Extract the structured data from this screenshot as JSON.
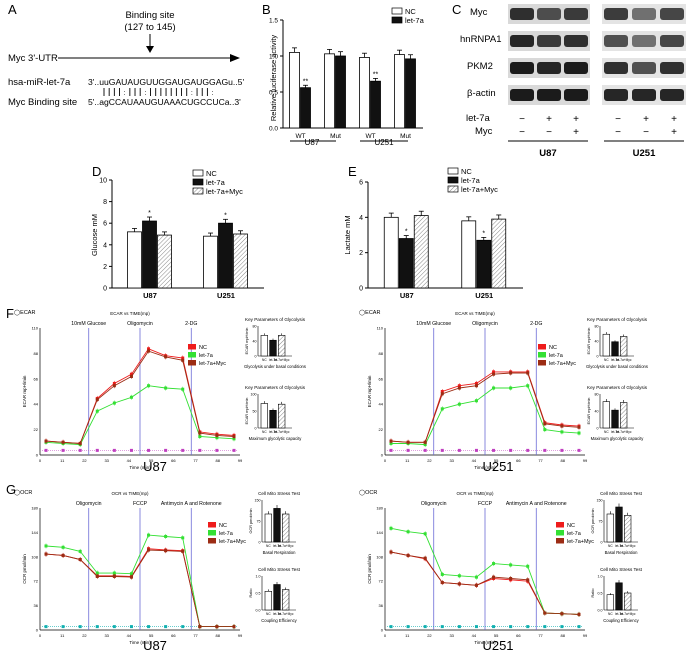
{
  "panel_letters": {
    "A": "A",
    "B": "B",
    "C": "C",
    "D": "D",
    "E": "E",
    "F": "F",
    "G": "G"
  },
  "panel_a": {
    "binding_title": "Binding site",
    "binding_range": "(127 to 145)",
    "myc_utr_label": "Myc 3'-UTR",
    "mirna_label": "hsa-miR-let-7a",
    "myc_site_label": "Myc Binding site",
    "mirna_seq": "3'..uuGAUAUGUUGGAUGAUGGAGu..5'",
    "myc_seq": "5'..agCCAUAAUGUAAACUGCCUCa..3'"
  },
  "panel_b": {
    "ylabel": "Relative luciferase activity",
    "legend": [
      "NC",
      "let-7a"
    ],
    "cell_lines": [
      "U87",
      "U251"
    ],
    "chart_data": {
      "type": "bar",
      "categories": [
        "U87 WT",
        "U87 Mut",
        "U251 WT",
        "U251 Mut"
      ],
      "tick_labels": [
        "WT",
        "Mut",
        "WT",
        "Mut"
      ],
      "series": [
        {
          "name": "NC",
          "values": [
            1.05,
            1.03,
            0.98,
            1.02
          ]
        },
        {
          "name": "let-7a",
          "values": [
            0.56,
            1.0,
            0.65,
            0.96
          ]
        }
      ],
      "ylim": [
        0,
        1.5
      ],
      "yticks": [
        "0.0",
        "0.5",
        "1.0",
        "1.5"
      ],
      "annotations": [
        "**",
        "**"
      ]
    }
  },
  "panel_c": {
    "rows": [
      "Myc",
      "hnRNPA1",
      "PKM2",
      "β-actin"
    ],
    "condition_labels": [
      "let-7a",
      "Myc"
    ],
    "signs_let7a": [
      "−",
      "+",
      "+",
      "−",
      "+",
      "+"
    ],
    "signs_myc": [
      "−",
      "−",
      "+",
      "−",
      "−",
      "+"
    ],
    "cell_lines": [
      "U87",
      "U251"
    ]
  },
  "panel_d": {
    "ylabel": "Glucose mM",
    "legend": [
      "NC",
      "let-7a",
      "let-7a+Myc"
    ],
    "chart_data": {
      "type": "bar",
      "categories": [
        "U87",
        "U251"
      ],
      "series": [
        {
          "name": "NC",
          "values": [
            5.2,
            4.8
          ]
        },
        {
          "name": "let-7a",
          "values": [
            6.2,
            6.0
          ]
        },
        {
          "name": "let-7a+Myc",
          "values": [
            4.9,
            5.0
          ]
        }
      ],
      "ylim": [
        0,
        10
      ],
      "yticks": [
        "0",
        "2",
        "4",
        "6",
        "8",
        "10"
      ],
      "annotations": [
        "*",
        "*"
      ]
    }
  },
  "panel_e": {
    "ylabel": "Lactate mM",
    "legend": [
      "NC",
      "let-7a",
      "let-7a+Myc"
    ],
    "chart_data": {
      "type": "bar",
      "categories": [
        "U87",
        "U251"
      ],
      "series": [
        {
          "name": "NC",
          "values": [
            4.0,
            3.8
          ]
        },
        {
          "name": "let-7a",
          "values": [
            2.8,
            2.7
          ]
        },
        {
          "name": "let-7a+Myc",
          "values": [
            4.1,
            3.9
          ]
        }
      ],
      "ylim": [
        0,
        6
      ],
      "yticks": [
        "0",
        "2",
        "4",
        "6"
      ],
      "annotations": [
        "*",
        "*"
      ]
    }
  },
  "panel_f": {
    "top_label": "ECAR",
    "sub_title": "ECAR vs TIME(mp)",
    "ylabel": "ECAR mpH/min",
    "xlabel": "Time (min)",
    "injections": [
      "10mM Glucose",
      "Oligomycin",
      "2-DG"
    ],
    "legend": [
      "NC",
      "let-7a",
      "let-7a+Myc"
    ],
    "cell_lines": [
      "U87",
      "U251"
    ],
    "xticks": [
      "0",
      "11",
      "22",
      "33",
      "44",
      "55",
      "66",
      "77",
      "88",
      "99"
    ],
    "side_titles": [
      "Key Parameters of Glycolysis",
      "Key Parameters of Glycolysis"
    ],
    "side_ylabel": "ECAR mpH/min",
    "side_xlabels": [
      "Glycolysis under basal conditions",
      "Maximum glycolytic capacity"
    ],
    "chart_data": [
      {
        "name": "U87",
        "type": "line",
        "series": [
          {
            "name": "NC",
            "values": [
              12,
              11,
              10,
              49,
              62,
              70,
              92,
              86,
              84,
              20,
              18,
              17
            ]
          },
          {
            "name": "let-7a",
            "values": [
              11,
              10,
              9,
              38,
              45,
              50,
              60,
              58,
              57,
              16,
              15,
              14
            ]
          },
          {
            "name": "let-7a+Myc",
            "values": [
              12,
              11,
              10,
              48,
              60,
              68,
              90,
              85,
              82,
              19,
              17,
              16
            ]
          }
        ],
        "baseline": 4,
        "ylim": [
          0,
          110
        ]
      },
      {
        "name": "U251",
        "type": "line",
        "series": [
          {
            "name": "NC",
            "values": [
              12,
              11,
              11,
              55,
              60,
              62,
              72,
              72,
              72,
              28,
              26,
              25
            ]
          },
          {
            "name": "let-7a",
            "values": [
              10,
              10,
              9,
              40,
              44,
              47,
              58,
              58,
              60,
              22,
              20,
              19
            ]
          },
          {
            "name": "let-7a+Myc",
            "values": [
              12,
              11,
              11,
              53,
              58,
              60,
              70,
              71,
              71,
              27,
              25,
              24
            ]
          }
        ],
        "baseline": 4,
        "ylim": [
          0,
          110
        ]
      }
    ],
    "side_data": [
      {
        "name": "U87 basal",
        "values": [
          55,
          42,
          55
        ],
        "ylim": [
          0,
          80
        ]
      },
      {
        "name": "U87 max",
        "values": [
          72,
          52,
          70
        ],
        "ylim": [
          0,
          100
        ]
      },
      {
        "name": "U251 basal",
        "values": [
          58,
          38,
          52
        ],
        "ylim": [
          0,
          80
        ]
      },
      {
        "name": "U251 max",
        "values": [
          62,
          42,
          60
        ],
        "ylim": [
          0,
          80
        ]
      }
    ]
  },
  "panel_g": {
    "top_label": "OCR",
    "sub_title": "OCR vs TIME(mp)",
    "ylabel": "OCR pmol/min",
    "xlabel": "Time (min)",
    "injections": [
      "Oligomycin",
      "FCCP",
      "Antimycin A and Rotenone"
    ],
    "legend": [
      "NC",
      "let-7a",
      "let-7a+Myc"
    ],
    "cell_lines": [
      "U87",
      "U251"
    ],
    "xticks": [
      "0",
      "11",
      "22",
      "33",
      "44",
      "55",
      "66",
      "77",
      "88",
      "99"
    ],
    "side_titles": [
      "Cell Mito Stress Test",
      "Cell Mito Stress Test"
    ],
    "side_ylabels": [
      "OCR pmol/min",
      "Ratio"
    ],
    "side_xlabels": [
      "Basal Respiration",
      "Coupling Efficiency"
    ],
    "chart_data": [
      {
        "name": "U87",
        "type": "line",
        "series": [
          {
            "name": "NC",
            "values": [
              112,
              110,
              104,
              80,
              80,
              79,
              120,
              118,
              117,
              5,
              5,
              5
            ]
          },
          {
            "name": "let-7a",
            "values": [
              124,
              122,
              116,
              84,
              84,
              83,
              140,
              138,
              136,
              5,
              5,
              5
            ]
          },
          {
            "name": "let-7a+Myc",
            "values": [
              112,
              110,
              104,
              79,
              79,
              78,
              118,
              117,
              116,
              5,
              5,
              5
            ]
          }
        ],
        "ylim": [
          0,
          180
        ]
      },
      {
        "name": "U251",
        "type": "line",
        "series": [
          {
            "name": "NC",
            "values": [
              115,
              110,
              105,
              70,
              68,
              66,
              76,
              74,
              72,
              25,
              24,
              23
            ]
          },
          {
            "name": "let-7a",
            "values": [
              150,
              145,
              142,
              82,
              80,
              78,
              98,
              96,
              94,
              25,
              24,
              23
            ]
          },
          {
            "name": "let-7a+Myc",
            "values": [
              115,
              110,
              106,
              70,
              68,
              66,
              78,
              76,
              74,
              25,
              24,
              23
            ]
          }
        ],
        "ylim": [
          0,
          180
        ]
      }
    ],
    "side_data": [
      {
        "name": "U87 basal",
        "values": [
          100,
          120,
          100
        ],
        "ylim": [
          0,
          150
        ]
      },
      {
        "name": "U87 coupling",
        "values": [
          0.55,
          0.75,
          0.6
        ],
        "ylim": [
          0,
          1.0
        ]
      },
      {
        "name": "U251 basal",
        "values": [
          100,
          125,
          95
        ],
        "ylim": [
          0,
          150
        ]
      },
      {
        "name": "U251 coupling",
        "values": [
          0.45,
          0.8,
          0.5
        ],
        "ylim": [
          0,
          1.0
        ]
      }
    ]
  },
  "colors": {
    "nc": "#ee1c1c",
    "let7a": "#33e033",
    "myc": "#9c2c14",
    "baseline_ecar": "#c040c0",
    "baseline_ocr": "#10b0b0",
    "injection_line": "#6b6bd6"
  }
}
